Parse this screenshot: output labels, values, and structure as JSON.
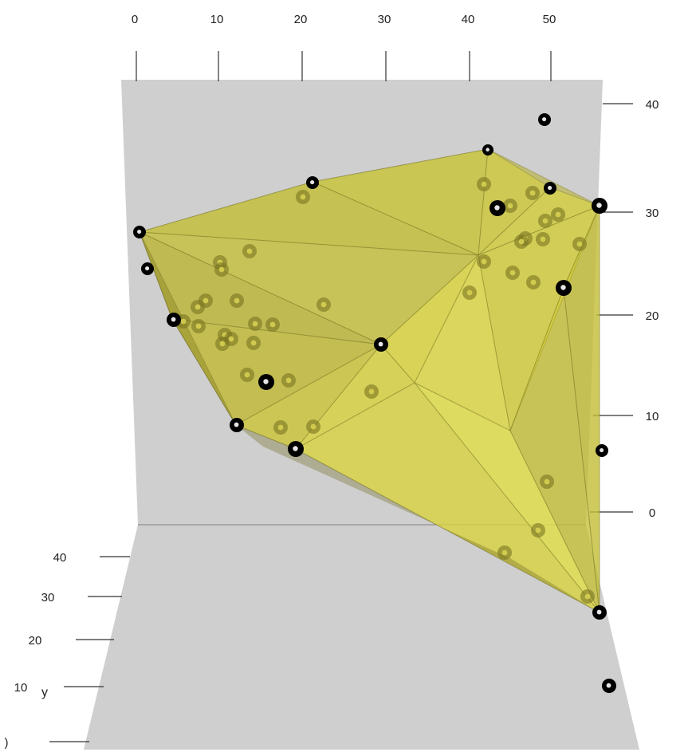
{
  "chart_data": {
    "type": "scatter",
    "subtype": "3d-scatter-with-convex-hull",
    "background": "#ffffff",
    "colors": {
      "panel": "#cfcfcf",
      "hull": "#e6e23a",
      "hull_edge": "#6e6a1e",
      "point": "#000000",
      "axis": "#333333"
    },
    "x_axis": {
      "position": "top",
      "ticks": [
        "0",
        "10",
        "20",
        "30",
        "40",
        "50"
      ]
    },
    "z_axis": {
      "position": "right",
      "ticks": [
        "40",
        "30",
        "20",
        "10",
        "0"
      ]
    },
    "y_axis": {
      "position": "bottom-left",
      "label": "y",
      "ticks": [
        "40",
        "30",
        "20",
        "10",
        ")"
      ]
    },
    "hull": {
      "vertices_visible": 13
    },
    "front_point_count": 13,
    "inside_point_count": 47
  }
}
